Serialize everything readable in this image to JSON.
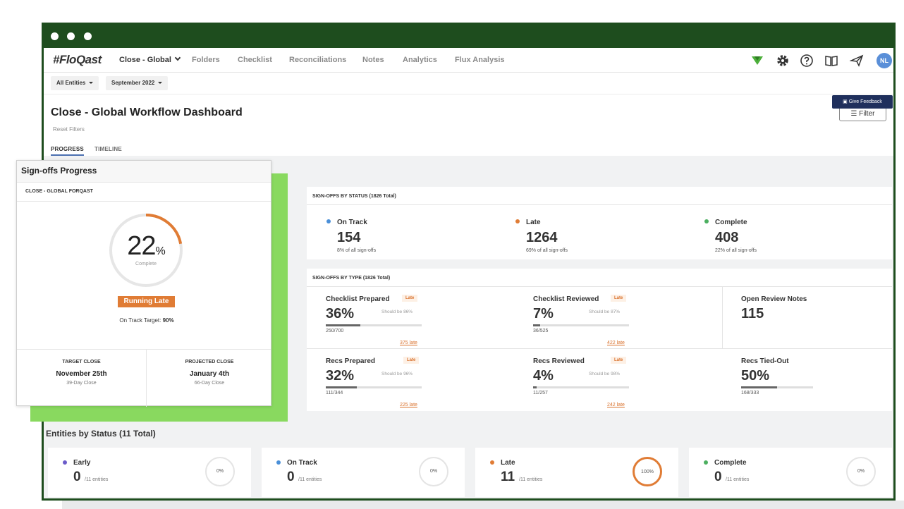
{
  "window": {
    "dots": 3
  },
  "nav": {
    "logo": "#FloQast",
    "close_menu": "Close - Global",
    "items": [
      "Folders",
      "Checklist",
      "Reconciliations",
      "Notes",
      "Analytics",
      "Flux Analysis"
    ],
    "avatar": "NL"
  },
  "filters": {
    "entities": "All Entities",
    "period": "September 2022"
  },
  "header": {
    "title": "Close - Global Workflow Dashboard",
    "reset": "Reset Filters",
    "tabs": [
      "PROGRESS",
      "TIMELINE"
    ],
    "filter_button": "Filter",
    "feedback_button": "Give Feedback"
  },
  "by_status": {
    "label": "SIGN-OFFS BY STATUS (1826 Total)",
    "items": [
      {
        "name": "On Track",
        "value": "154",
        "sub": "8% of all sign-offs",
        "color": "#4a8fd8"
      },
      {
        "name": "Late",
        "value": "1264",
        "sub": "69% of all sign-offs",
        "color": "#e07c35"
      },
      {
        "name": "Complete",
        "value": "408",
        "sub": "22% of all sign-offs",
        "color": "#4caf60"
      }
    ]
  },
  "by_type": {
    "label": "SIGN-OFFS BY TYPE (1826 Total)",
    "items": [
      {
        "name": "Checklist Prepared",
        "badge": "Late",
        "pct": "36%",
        "should": "Should be 86%",
        "progress": 0.36,
        "frac": "250/700",
        "late": "375 late"
      },
      {
        "name": "Checklist Reviewed",
        "badge": "Late",
        "pct": "7%",
        "should": "Should be 87%",
        "progress": 0.07,
        "frac": "36/525",
        "late": "422 late"
      },
      {
        "name": "Open Review Notes",
        "pct": "115"
      },
      {
        "name": "Recs Prepared",
        "badge": "Late",
        "pct": "32%",
        "should": "Should be 96%",
        "progress": 0.32,
        "frac": "111/344",
        "late": "225 late"
      },
      {
        "name": "Recs Reviewed",
        "badge": "Late",
        "pct": "4%",
        "should": "Should be 98%",
        "progress": 0.04,
        "frac": "11/257",
        "late": "242 late"
      },
      {
        "name": "Recs Tied-Out",
        "pct": "50%",
        "progress": 0.5,
        "frac": "168/333"
      }
    ]
  },
  "entities": {
    "title": "Entities by Status (11 Total)",
    "items": [
      {
        "name": "Early",
        "value": "0",
        "sub": "/11 entities",
        "ring": "0%",
        "color": "#6b5bc9"
      },
      {
        "name": "On Track",
        "value": "0",
        "sub": "/11 entities",
        "ring": "0%",
        "color": "#4a8fd8"
      },
      {
        "name": "Late",
        "value": "11",
        "sub": "/11 entities",
        "ring": "100%",
        "color": "#e07c35"
      },
      {
        "name": "Complete",
        "value": "0",
        "sub": "/11 entities",
        "ring": "0%",
        "color": "#4caf60"
      }
    ]
  },
  "signoffs_card": {
    "title": "Sign-offs Progress",
    "subtitle": "CLOSE - GLOBAL FORQAST",
    "pct_number": "22",
    "pct_sign": "%",
    "pct_label": "Complete",
    "progress": 0.22,
    "status": "Running Late",
    "target_label": "On Track Target: ",
    "target_value": "90%",
    "target_close_label": "TARGET CLOSE",
    "target_close_date": "November 25th",
    "target_close_days": "39-Day Close",
    "projected_close_label": "PROJECTED CLOSE",
    "projected_close_date": "January 4th",
    "projected_close_days": "66-Day Close",
    "accent_color": "#e07c35"
  }
}
